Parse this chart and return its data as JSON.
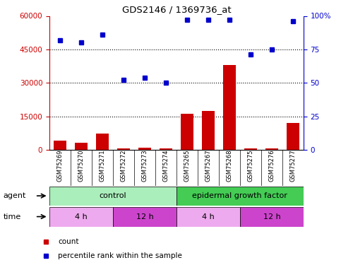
{
  "title": "GDS2146 / 1369736_at",
  "samples": [
    "GSM75269",
    "GSM75270",
    "GSM75271",
    "GSM75272",
    "GSM75273",
    "GSM75274",
    "GSM75265",
    "GSM75267",
    "GSM75268",
    "GSM75275",
    "GSM75276",
    "GSM75277"
  ],
  "counts": [
    4200,
    3000,
    7200,
    700,
    800,
    600,
    16000,
    17500,
    38000,
    600,
    600,
    12000
  ],
  "percentile": [
    82,
    80,
    86,
    52,
    54,
    50,
    97,
    97,
    97,
    71,
    75,
    96
  ],
  "ylim_left": [
    0,
    60000
  ],
  "ylim_right": [
    0,
    100
  ],
  "yticks_left": [
    0,
    15000,
    30000,
    45000,
    60000
  ],
  "ytick_labels_left": [
    "0",
    "15000",
    "30000",
    "45000",
    "60000"
  ],
  "yticks_right": [
    0,
    25,
    50,
    75,
    100
  ],
  "ytick_labels_right": [
    "0",
    "25",
    "50",
    "75",
    "100%"
  ],
  "bar_color": "#cc0000",
  "dot_color": "#0000cc",
  "agent_groups": [
    {
      "label": "control",
      "start": 0,
      "end": 6,
      "color": "#aaeebb"
    },
    {
      "label": "epidermal growth factor",
      "start": 6,
      "end": 12,
      "color": "#44cc55"
    }
  ],
  "time_groups": [
    {
      "label": "4 h",
      "start": 0,
      "end": 3,
      "color": "#eeaaee"
    },
    {
      "label": "12 h",
      "start": 3,
      "end": 6,
      "color": "#cc44cc"
    },
    {
      "label": "4 h",
      "start": 6,
      "end": 9,
      "color": "#eeaaee"
    },
    {
      "label": "12 h",
      "start": 9,
      "end": 12,
      "color": "#cc44cc"
    }
  ],
  "legend_items": [
    {
      "label": "count",
      "color": "#cc0000",
      "marker": "s"
    },
    {
      "label": "percentile rank within the sample",
      "color": "#0000cc",
      "marker": "s"
    }
  ],
  "grid_color": "black",
  "tick_color_left": "#cc0000",
  "tick_color_right": "#0000cc",
  "sample_box_color": "#cccccc",
  "agent_label": "agent",
  "time_label": "time",
  "bg_color": "#ffffff"
}
